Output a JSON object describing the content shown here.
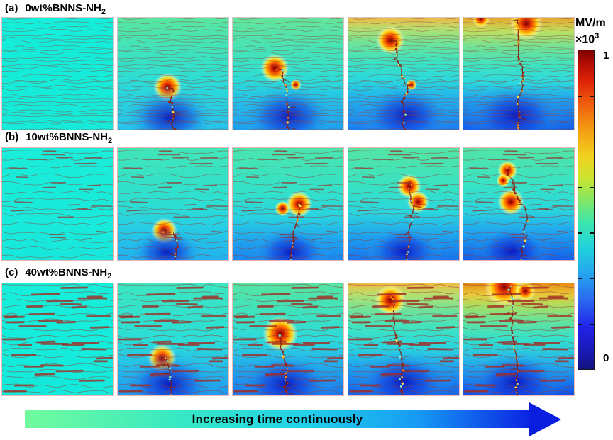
{
  "rows": [
    {
      "prefix": "(a)",
      "name": "0wt%BNNS-NH",
      "sub": "2",
      "border_color": "#d6c6c6",
      "texture": {
        "seed": 7,
        "wavy": 30,
        "amp": 2.4,
        "line_width": 0.7,
        "line_color": "rgba(150,62,54,0.55)",
        "segments": 0,
        "seg_len_min": 0,
        "seg_len_max": 0,
        "seg_width": 0,
        "seg_color": "rgba(150,50,44,0.7)"
      },
      "panels": [
        {
          "name": "a1",
          "bg": [
            [
              0,
              "#14eedb"
            ],
            [
              1,
              "#16ead9"
            ]
          ],
          "spots": [],
          "tree": null
        },
        {
          "name": "a2",
          "bg": [
            [
              0,
              "#59e6a1"
            ],
            [
              0.4,
              "#36e2c6"
            ],
            [
              0.6,
              "#2bdbd9"
            ],
            [
              1,
              "#26c2ea"
            ]
          ],
          "spots": [
            [
              "hot",
              45,
              62,
              13
            ],
            [
              "cold",
              47,
              89,
              32
            ]
          ],
          "tree": [
            45,
            63
          ]
        },
        {
          "name": "a3",
          "bg": [
            [
              0,
              "#63e59b"
            ],
            [
              0.35,
              "#3fe3be"
            ],
            [
              0.55,
              "#2cddd6"
            ],
            [
              0.75,
              "#24bfe9"
            ],
            [
              1,
              "#1fa0ef"
            ]
          ],
          "spots": [
            [
              "hot",
              38,
              45,
              13
            ],
            [
              "hot",
              57,
              60,
              5
            ],
            [
              "cold",
              50,
              88,
              33
            ]
          ],
          "tree": [
            39,
            46
          ]
        },
        {
          "name": "a4",
          "bg": [
            [
              0,
              "#f0b945"
            ],
            [
              0.1,
              "#b2e070"
            ],
            [
              0.22,
              "#6fe398"
            ],
            [
              0.38,
              "#3ee3c0"
            ],
            [
              0.55,
              "#2bd9dc"
            ],
            [
              0.74,
              "#21aeee"
            ],
            [
              1,
              "#1c7ef0"
            ]
          ],
          "spots": [
            [
              "hot",
              38,
              20,
              13
            ],
            [
              "hot",
              57,
              60,
              5
            ],
            [
              "cold",
              52,
              87,
              32
            ]
          ],
          "tree": [
            38,
            21
          ]
        },
        {
          "name": "a5",
          "bg": [
            [
              0,
              "#e8a62c"
            ],
            [
              0.12,
              "#bce060"
            ],
            [
              0.26,
              "#72e295"
            ],
            [
              0.42,
              "#3fe3c0"
            ],
            [
              0.58,
              "#2bd8de"
            ],
            [
              0.76,
              "#1f97ee"
            ],
            [
              1,
              "#1560ea"
            ]
          ],
          "spots": [
            [
              "hot",
              57,
              5,
              15
            ],
            [
              "hot",
              16,
              1,
              8
            ],
            [
              "cold",
              47,
              87,
              33
            ]
          ],
          "tree": [
            44,
            3
          ]
        }
      ]
    },
    {
      "prefix": "(b)",
      "name": "10wt%BNNS-NH",
      "sub": "2",
      "border_color": "#f0aeae",
      "texture": {
        "seed": 13,
        "wavy": 14,
        "amp": 3.4,
        "line_width": 0.8,
        "line_color": "rgba(148,60,52,0.55)",
        "segments": 24,
        "seg_len_min": 12,
        "seg_len_max": 32,
        "seg_width": 1.6,
        "seg_color": "rgba(150,48,44,0.7)"
      },
      "panels": [
        {
          "name": "b1",
          "bg": [
            [
              0,
              "#1aedd9"
            ],
            [
              1,
              "#18e8dc"
            ]
          ],
          "spots": [],
          "tree": null
        },
        {
          "name": "b2",
          "bg": [
            [
              0,
              "#41e6b8"
            ],
            [
              0.5,
              "#2cdfd3"
            ],
            [
              0.75,
              "#26c9e6"
            ],
            [
              1,
              "#21b0ee"
            ]
          ],
          "spots": [
            [
              "hot",
              42,
              74,
              12
            ],
            [
              "cold",
              44,
              93,
              26
            ]
          ],
          "tree": [
            42,
            75
          ]
        },
        {
          "name": "b3",
          "bg": [
            [
              0,
              "#4ae5ae"
            ],
            [
              0.4,
              "#32e1ca"
            ],
            [
              0.62,
              "#28d2e0"
            ],
            [
              0.84,
              "#20a0ee"
            ],
            [
              1,
              "#1c86ef"
            ]
          ],
          "spots": [
            [
              "hot",
              60,
              50,
              12
            ],
            [
              "hot",
              45,
              54,
              7
            ],
            [
              "cold",
              52,
              93,
              27
            ]
          ],
          "tree": [
            58,
            50
          ]
        },
        {
          "name": "b4",
          "bg": [
            [
              0,
              "#55e4a4"
            ],
            [
              0.35,
              "#37e2c4"
            ],
            [
              0.58,
              "#2ad5de"
            ],
            [
              0.8,
              "#1f9eee"
            ],
            [
              1,
              "#1874ec"
            ]
          ],
          "spots": [
            [
              "hot",
              55,
              34,
              11
            ],
            [
              "hot",
              63,
              48,
              10
            ],
            [
              "cold",
              50,
              92,
              27
            ]
          ],
          "tree": [
            55,
            30
          ]
        },
        {
          "name": "b5",
          "bg": [
            [
              0,
              "#52e4a6"
            ],
            [
              0.32,
              "#38e2c4"
            ],
            [
              0.55,
              "#2bd6dd"
            ],
            [
              0.75,
              "#20a4ee"
            ],
            [
              1,
              "#1560e8"
            ]
          ],
          "spots": [
            [
              "hot",
              40,
              20,
              9
            ],
            [
              "hot",
              36,
              29,
              6
            ],
            [
              "hot",
              43,
              48,
              12
            ],
            [
              "cold",
              44,
              92,
              27
            ]
          ],
          "tree": [
            40,
            17
          ]
        }
      ]
    },
    {
      "prefix": "(c)",
      "name": "40wt%BNNS-NH",
      "sub": "2",
      "border_color": "#eebab6",
      "texture": {
        "seed": 29,
        "wavy": 16,
        "amp": 3.6,
        "line_width": 0.8,
        "line_color": "rgba(150,58,50,0.6)",
        "segments": 34,
        "seg_len_min": 16,
        "seg_len_max": 40,
        "seg_width": 2.8,
        "seg_color": "rgba(162,42,36,0.8)"
      },
      "panels": [
        {
          "name": "c1",
          "bg": [
            [
              0,
              "#16eedb"
            ],
            [
              1,
              "#14eadc"
            ]
          ],
          "spots": [],
          "tree": null
        },
        {
          "name": "c2",
          "bg": [
            [
              0,
              "#3be6c0"
            ],
            [
              0.5,
              "#2bded6"
            ],
            [
              0.72,
              "#25c2e8"
            ],
            [
              1,
              "#1e97ef"
            ]
          ],
          "spots": [
            [
              "hot",
              40,
              67,
              13
            ],
            [
              "cold",
              46,
              90,
              33
            ]
          ],
          "tree": [
            40,
            68
          ]
        },
        {
          "name": "c3",
          "bg": [
            [
              0,
              "#55e4a3"
            ],
            [
              0.3,
              "#3ae2c2"
            ],
            [
              0.52,
              "#2bd8dd"
            ],
            [
              0.74,
              "#22aaec"
            ],
            [
              1,
              "#1a76ec"
            ]
          ],
          "spots": [
            [
              "hot",
              43,
              45,
              16
            ],
            [
              "cold",
              48,
              90,
              33
            ]
          ],
          "tree": [
            43,
            46
          ]
        },
        {
          "name": "c4",
          "bg": [
            [
              0,
              "#f0bc42"
            ],
            [
              0.1,
              "#b5e06e"
            ],
            [
              0.24,
              "#6ee29a"
            ],
            [
              0.4,
              "#3de3c2"
            ],
            [
              0.58,
              "#2ad4df"
            ],
            [
              0.78,
              "#1f98ef"
            ],
            [
              1,
              "#1662ea"
            ]
          ],
          "spots": [
            [
              "hot",
              38,
              15,
              14
            ],
            [
              "cold",
              50,
              88,
              33
            ]
          ],
          "tree": [
            38,
            12
          ]
        },
        {
          "name": "c5",
          "bg": [
            [
              0,
              "#e88d16"
            ],
            [
              0.1,
              "#e8c838"
            ],
            [
              0.2,
              "#a8de62"
            ],
            [
              0.34,
              "#62e29e"
            ],
            [
              0.5,
              "#33e0cc"
            ],
            [
              0.66,
              "#28bee6"
            ],
            [
              0.84,
              "#1c86ee"
            ],
            [
              1,
              "#124ce6"
            ]
          ],
          "spots": [
            [
              "hot",
              37,
              3,
              18
            ],
            [
              "hot",
              56,
              7,
              9
            ],
            [
              "cold",
              47,
              88,
              33
            ]
          ],
          "tree": [
            42,
            2
          ]
        }
      ]
    }
  ],
  "spot_styles": {
    "hot": [
      [
        0,
        "#7d0000",
        1
      ],
      [
        0.2,
        "#cc2000",
        1
      ],
      [
        0.4,
        "#ff6400",
        1
      ],
      [
        0.56,
        "#ffaf00",
        1
      ],
      [
        0.7,
        "#ffe53c",
        0.92
      ],
      [
        0.84,
        "#fff596",
        0.45
      ],
      [
        1,
        "#ffffff",
        0
      ]
    ],
    "cold": [
      [
        0,
        "#0a16be",
        0.95
      ],
      [
        0.45,
        "#1440e0",
        0.55
      ],
      [
        0.75,
        "#2090e8",
        0.22
      ],
      [
        1,
        "#40c0f0",
        0
      ]
    ]
  },
  "colorbar": {
    "unit": "MV/m",
    "multiplier_prefix": "×10",
    "multiplier_exp": "3",
    "max_label": "1",
    "min_label": "0",
    "inner_ticks": 6,
    "stops": [
      [
        0,
        "#13137f"
      ],
      [
        0.06,
        "#1a1ab8"
      ],
      [
        0.13,
        "#2222e8"
      ],
      [
        0.22,
        "#2a6cf0"
      ],
      [
        0.3,
        "#25a5ef"
      ],
      [
        0.38,
        "#1fd2dc"
      ],
      [
        0.46,
        "#3ce6ad"
      ],
      [
        0.53,
        "#83e765"
      ],
      [
        0.6,
        "#cbe52f"
      ],
      [
        0.67,
        "#f2d01e"
      ],
      [
        0.75,
        "#f49d13"
      ],
      [
        0.83,
        "#ef5f0d"
      ],
      [
        0.9,
        "#e02508"
      ],
      [
        0.96,
        "#b30d04"
      ],
      [
        1,
        "#7b0000"
      ]
    ]
  },
  "arrow": {
    "label": "Increasing time continuously",
    "stops": [
      [
        0,
        "#72fb9d"
      ],
      [
        0.3,
        "#37e9c3"
      ],
      [
        0.55,
        "#23d2e8"
      ],
      [
        0.78,
        "#169af5"
      ],
      [
        1,
        "#0b24e2"
      ]
    ],
    "head_color": "#0a1ee0"
  }
}
